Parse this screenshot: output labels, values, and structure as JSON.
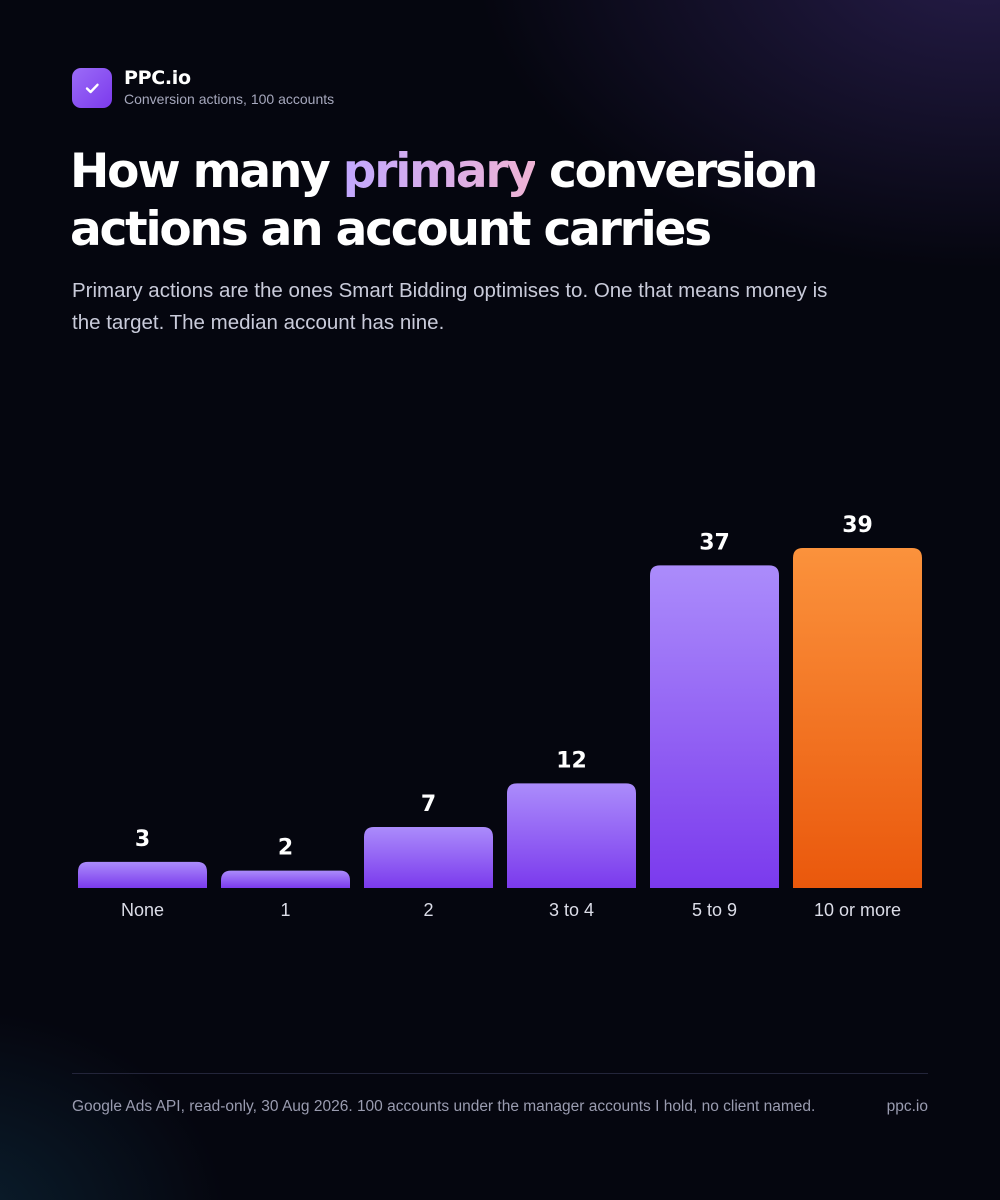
{
  "brand": {
    "name": "PPC.io",
    "subtitle": "Conversion actions, 100 accounts",
    "logo_icon": "checkmark-icon",
    "logo_color": "#8b5cf6"
  },
  "headline": {
    "before": "How many ",
    "highlight": "primary",
    "after": " conversion actions an account carries"
  },
  "subtitle": "Primary actions are the ones Smart Bidding optimises to. One that means money is the target. The median account has nine.",
  "chart_data": {
    "type": "bar",
    "categories": [
      "None",
      "1",
      "2",
      "3 to 4",
      "5 to 9",
      "10 or more"
    ],
    "values": [
      3,
      2,
      7,
      12,
      37,
      39
    ],
    "ylim": [
      0,
      39
    ],
    "grid": false,
    "highlighted_category": "10 or more",
    "colors": {
      "bar": "#8b5cf6",
      "highlight": "#f97316"
    }
  },
  "footer": {
    "note": "Google Ads API, read-only, 30 Aug 2026. 100 accounts under the manager accounts I hold, no client named.",
    "site": "ppc.io"
  }
}
